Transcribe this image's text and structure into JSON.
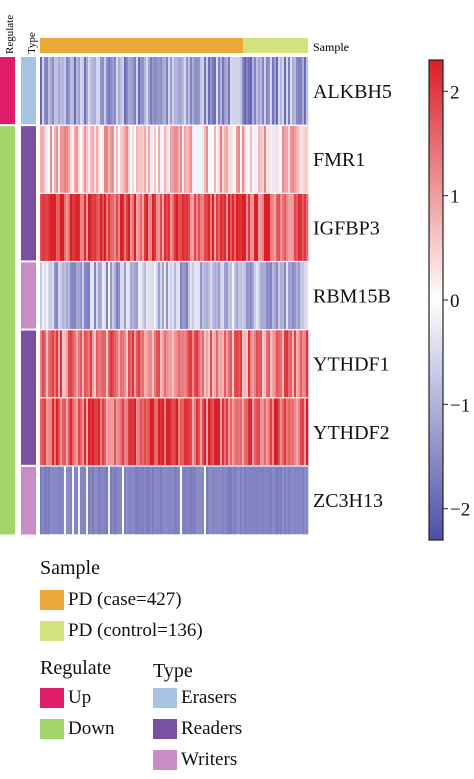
{
  "chart_data": {
    "type": "heatmap",
    "annotation_labels": {
      "regulate": "Regulate",
      "type": "Type",
      "sample": "Sample"
    },
    "rows": [
      {
        "gene": "ALKBH5",
        "regulate": "Up",
        "type": "Erasers",
        "level": -1.2
      },
      {
        "gene": "FMR1",
        "regulate": "Down",
        "type": "Readers",
        "level": 0.5
      },
      {
        "gene": "IGFBP3",
        "regulate": "Down",
        "type": "Readers",
        "level": 1.7
      },
      {
        "gene": "RBM15B",
        "regulate": "Down",
        "type": "Writers",
        "level": -0.9
      },
      {
        "gene": "YTHDF1",
        "regulate": "Down",
        "type": "Readers",
        "level": 1.3
      },
      {
        "gene": "YTHDF2",
        "regulate": "Down",
        "type": "Readers",
        "level": 1.7
      },
      {
        "gene": "ZC3H13",
        "regulate": "Down",
        "type": "Writers",
        "level": -1.6
      }
    ],
    "sample_groups": [
      {
        "label": "PD (case=427)",
        "count": 427,
        "color": "#eaa93a"
      },
      {
        "label": "PD (control=136)",
        "count": 136,
        "color": "#d3e27c"
      }
    ],
    "colorbar": {
      "range": [
        -2.3,
        2.3
      ],
      "ticks": [
        "2",
        "1",
        "0",
        "−1",
        "−2"
      ],
      "tick_values": [
        2,
        1,
        0,
        -1,
        -2
      ],
      "low_color": "#4d4fa8",
      "mid_color": "#ffffff",
      "high_color": "#d91f25"
    },
    "legend": {
      "sample_title": "Sample",
      "regulate_title": "Regulate",
      "type_title": "Type",
      "regulate": [
        {
          "label": "Up",
          "color": "#df1d6b"
        },
        {
          "label": "Down",
          "color": "#a4d46c"
        }
      ],
      "type": [
        {
          "label": "Erasers",
          "color": "#a7c4e5"
        },
        {
          "label": "Readers",
          "color": "#7a51a1"
        },
        {
          "label": "Writers",
          "color": "#c98dc6"
        }
      ]
    }
  }
}
